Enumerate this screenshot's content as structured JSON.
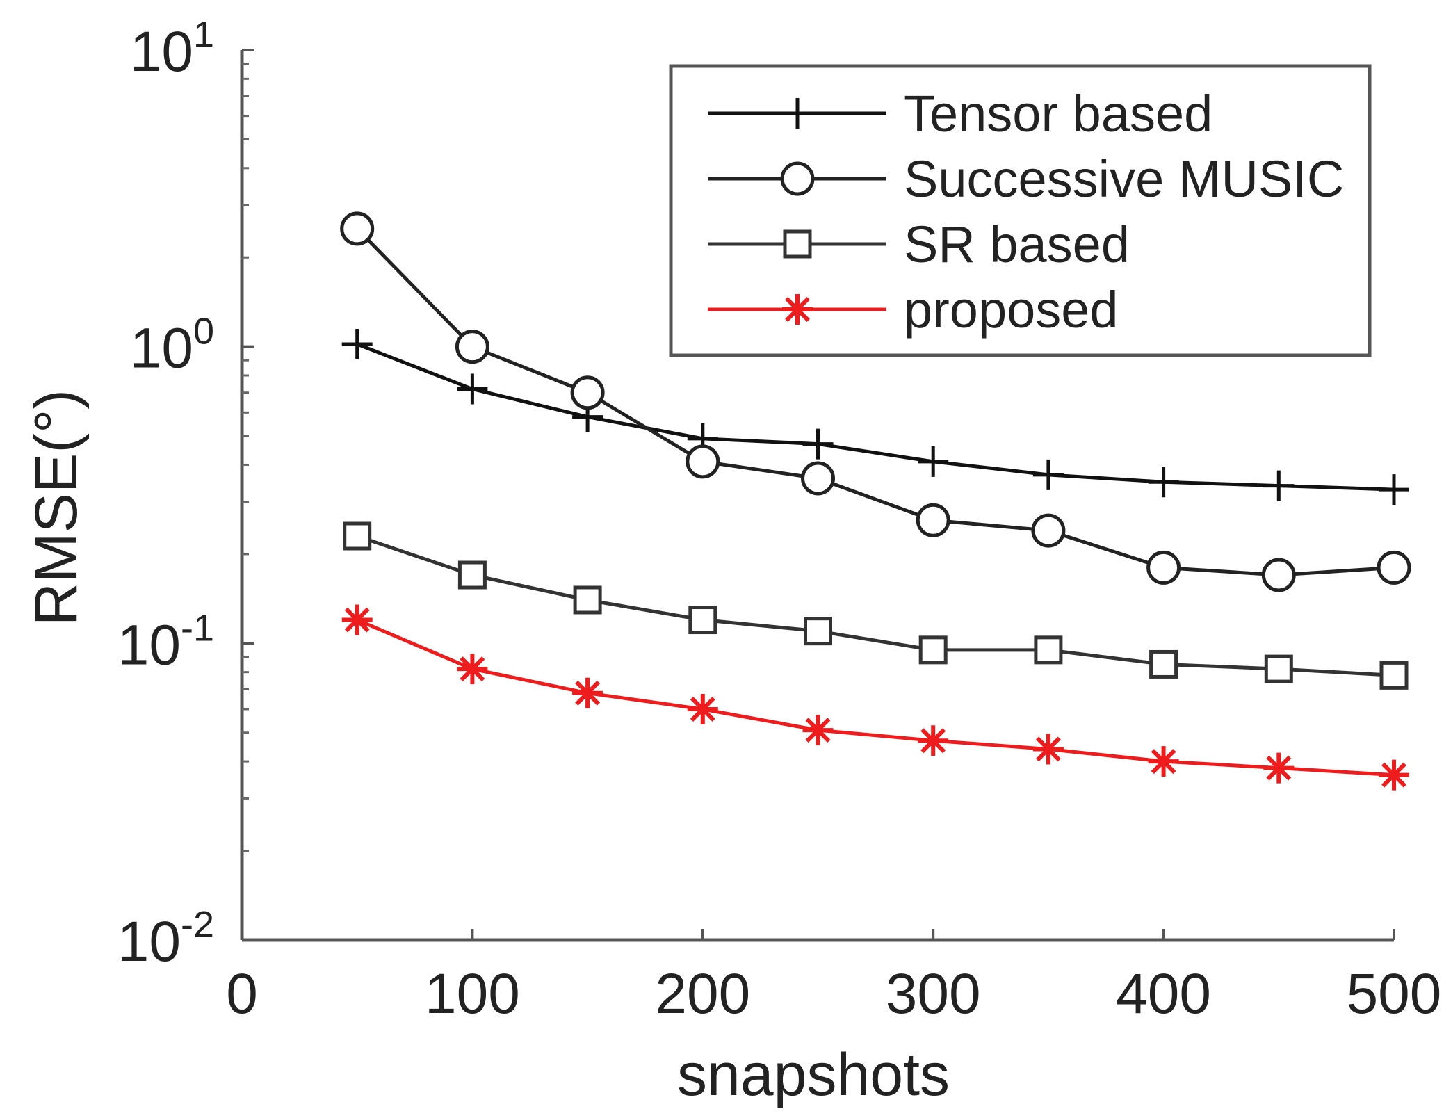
{
  "chart_data": {
    "type": "line",
    "title": "",
    "xlabel": "snapshots",
    "ylabel": "RMSE(°)",
    "xlim": [
      0,
      500
    ],
    "ylim": [
      0.01,
      10
    ],
    "yscale": "log",
    "xticks": [
      0,
      100,
      200,
      300,
      400,
      500
    ],
    "yticks": [
      {
        "value": 0.01,
        "base": "10",
        "exp": "-2"
      },
      {
        "value": 0.1,
        "base": "10",
        "exp": "-1"
      },
      {
        "value": 1,
        "base": "10",
        "exp": "0"
      },
      {
        "value": 10,
        "base": "10",
        "exp": "1"
      }
    ],
    "grid": false,
    "legend_position": "top-right",
    "x": [
      50,
      100,
      150,
      200,
      250,
      300,
      350,
      400,
      450,
      500
    ],
    "series": [
      {
        "name": "Tensor based",
        "marker": "plus",
        "color": "#111111",
        "values": [
          1.02,
          0.72,
          0.58,
          0.49,
          0.47,
          0.41,
          0.37,
          0.35,
          0.34,
          0.33
        ]
      },
      {
        "name": "Successive MUSIC",
        "marker": "circle",
        "color": "#222222",
        "values": [
          2.5,
          1.0,
          0.7,
          0.41,
          0.36,
          0.26,
          0.24,
          0.18,
          0.17,
          0.18
        ]
      },
      {
        "name": "SR based",
        "marker": "square",
        "color": "#333333",
        "values": [
          0.23,
          0.17,
          0.14,
          0.12,
          0.11,
          0.095,
          0.095,
          0.085,
          0.082,
          0.078
        ]
      },
      {
        "name": "proposed",
        "marker": "asterisk",
        "color": "#ee1c1c",
        "values": [
          0.12,
          0.082,
          0.068,
          0.06,
          0.051,
          0.047,
          0.044,
          0.04,
          0.038,
          0.036
        ]
      }
    ]
  }
}
